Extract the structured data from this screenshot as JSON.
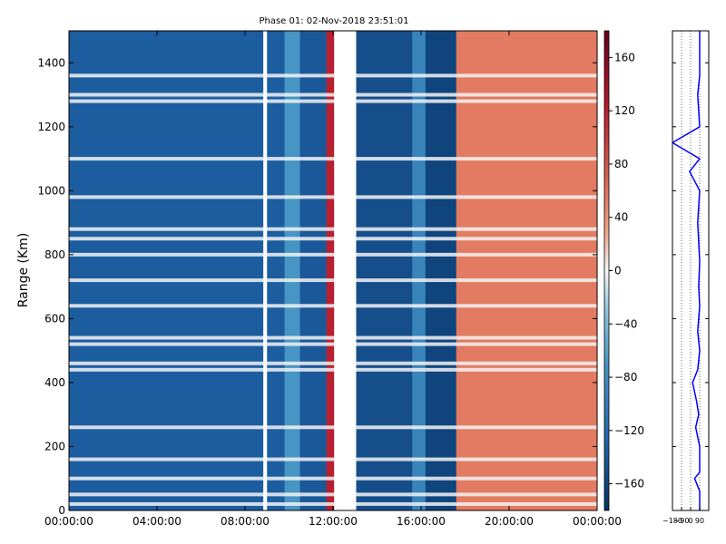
{
  "chart_data": [
    {
      "type": "heatmap",
      "title": "Phase 01: 02-Nov-2018 23:51:01",
      "xlabel": "",
      "ylabel": "Range (Km)",
      "x_ticks": [
        "00:00:00",
        "04:00:00",
        "08:00:00",
        "12:00:00",
        "16:00:00",
        "20:00:00",
        "00:00:00"
      ],
      "x_range_hours": [
        0,
        24
      ],
      "ylim": [
        0,
        1500
      ],
      "y_ticks": [
        0,
        200,
        400,
        600,
        800,
        1000,
        1200,
        1400
      ],
      "colormap": "RdBu_r",
      "colorbar": {
        "range": [
          -180,
          180
        ],
        "ticks": [
          160,
          120,
          80,
          40,
          0,
          -40,
          -80,
          -120,
          -160
        ]
      },
      "data_gaps_hours": [
        [
          8.83,
          9.0
        ],
        [
          12.05,
          13.05
        ]
      ],
      "regions": [
        {
          "hours": [
            0,
            9.8
          ],
          "mean_phase": -135
        },
        {
          "hours": [
            9.8,
            10.5
          ],
          "mean_phase": -70
        },
        {
          "hours": [
            10.5,
            11.7
          ],
          "mean_phase": -140
        },
        {
          "hours": [
            11.7,
            12.05
          ],
          "mean_phase": 120
        },
        {
          "hours": [
            13.05,
            15.6
          ],
          "mean_phase": -150
        },
        {
          "hours": [
            15.6,
            16.2
          ],
          "mean_phase": -90
        },
        {
          "hours": [
            16.2,
            17.6
          ],
          "mean_phase": -160
        },
        {
          "hours": [
            17.6,
            24
          ],
          "mean_phase": 55
        }
      ],
      "bright_range_bands_km": [
        20,
        50,
        100,
        160,
        260,
        440,
        460,
        520,
        540,
        640,
        720,
        800,
        850,
        880,
        980,
        1100,
        1280,
        1300,
        1360
      ]
    },
    {
      "type": "line",
      "title": "",
      "xlabel": "",
      "ylabel": "",
      "x_ticks": [
        "−180",
        "−90",
        "0",
        "90"
      ],
      "xlim": [
        -180,
        180
      ],
      "ylim": [
        0,
        1500
      ],
      "series_color": "#0000ff",
      "typical_value": 90,
      "profile": [
        [
          0,
          90
        ],
        [
          60,
          90
        ],
        [
          100,
          40
        ],
        [
          120,
          90
        ],
        [
          200,
          90
        ],
        [
          260,
          50
        ],
        [
          300,
          80
        ],
        [
          340,
          60
        ],
        [
          400,
          20
        ],
        [
          440,
          70
        ],
        [
          500,
          90
        ],
        [
          560,
          70
        ],
        [
          640,
          90
        ],
        [
          700,
          80
        ],
        [
          780,
          90
        ],
        [
          900,
          70
        ],
        [
          1000,
          90
        ],
        [
          1060,
          -10
        ],
        [
          1100,
          90
        ],
        [
          1150,
          -180
        ],
        [
          1200,
          90
        ],
        [
          1300,
          70
        ],
        [
          1360,
          90
        ],
        [
          1500,
          90
        ]
      ]
    }
  ]
}
